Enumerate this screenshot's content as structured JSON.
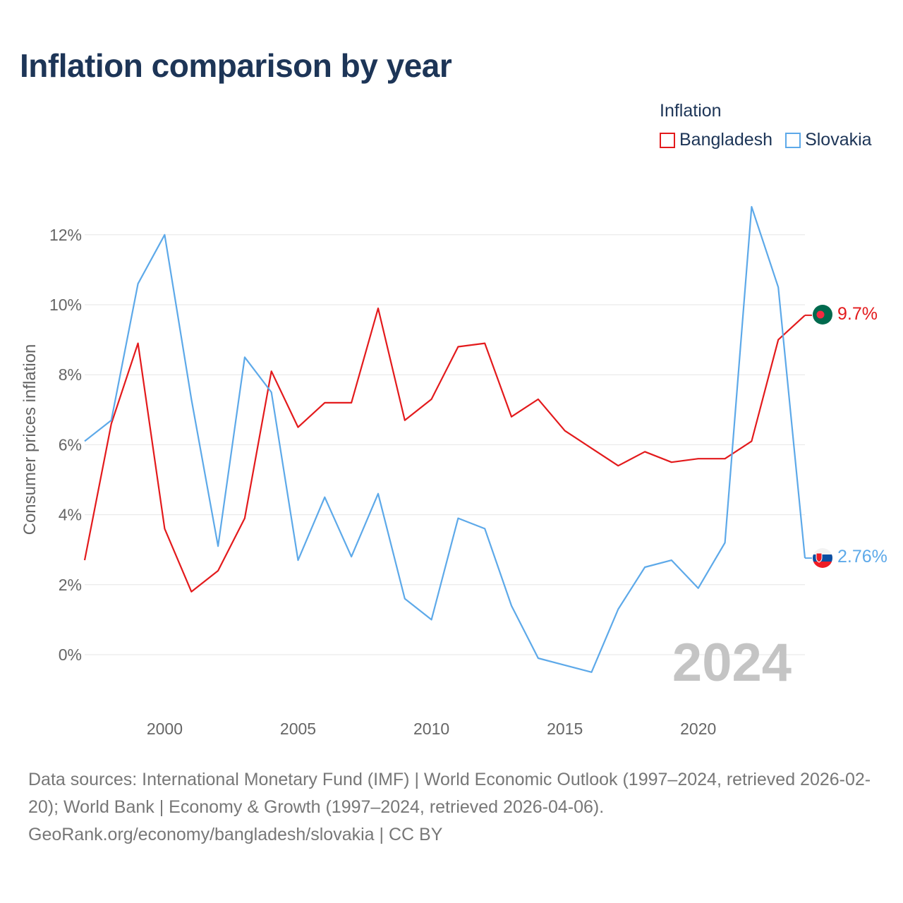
{
  "title": "Inflation comparison by year",
  "legend": {
    "title": "Inflation",
    "items": [
      {
        "label": "Bangladesh",
        "color": "#e31a1c"
      },
      {
        "label": "Slovakia",
        "color": "#5da9e9"
      }
    ]
  },
  "footer": {
    "line1": "Data sources: International Monetary Fund (IMF) | World Economic Outlook (1997–2024, retrieved 2026-02-20); World Bank | Economy & Growth (1997–2024, retrieved 2026-04-06).",
    "line2": "GeoRank.org/economy/bangladesh/slovakia | CC BY"
  },
  "chart_data": {
    "type": "line",
    "title": "Inflation comparison by year",
    "xlabel": "",
    "ylabel": "Consumer prices inflation",
    "xlim": [
      1997,
      2024
    ],
    "ylim": [
      -1.5,
      13
    ],
    "x": [
      1997,
      1998,
      1999,
      2000,
      2001,
      2002,
      2003,
      2004,
      2005,
      2006,
      2007,
      2008,
      2009,
      2010,
      2011,
      2012,
      2013,
      2014,
      2015,
      2016,
      2017,
      2018,
      2019,
      2020,
      2021,
      2022,
      2023,
      2024
    ],
    "x_ticks": [
      2000,
      2005,
      2010,
      2015,
      2020
    ],
    "y_ticks": [
      0,
      2,
      4,
      6,
      8,
      10,
      12
    ],
    "y_tick_labels": [
      "0%",
      "2%",
      "4%",
      "6%",
      "8%",
      "10%",
      "12%"
    ],
    "grid": true,
    "legend_position": "top-right",
    "year_watermark": "2024",
    "series": [
      {
        "name": "Bangladesh",
        "color": "#e31a1c",
        "values": [
          2.7,
          6.6,
          8.9,
          3.6,
          1.8,
          2.4,
          3.9,
          8.1,
          6.5,
          7.2,
          7.2,
          9.9,
          6.7,
          7.3,
          8.8,
          8.9,
          6.8,
          7.3,
          6.4,
          5.9,
          5.4,
          5.8,
          5.5,
          5.6,
          5.6,
          6.1,
          9.0,
          9.7
        ],
        "end_label": "9.7%"
      },
      {
        "name": "Slovakia",
        "color": "#5da9e9",
        "values": [
          6.1,
          6.7,
          10.6,
          12.0,
          7.3,
          3.1,
          8.5,
          7.5,
          2.7,
          4.5,
          2.8,
          4.6,
          1.6,
          1.0,
          3.9,
          3.6,
          1.4,
          -0.1,
          -0.3,
          -0.5,
          1.3,
          2.5,
          2.7,
          1.9,
          3.2,
          12.8,
          10.5,
          2.76
        ],
        "end_label": "2.76%"
      }
    ]
  }
}
